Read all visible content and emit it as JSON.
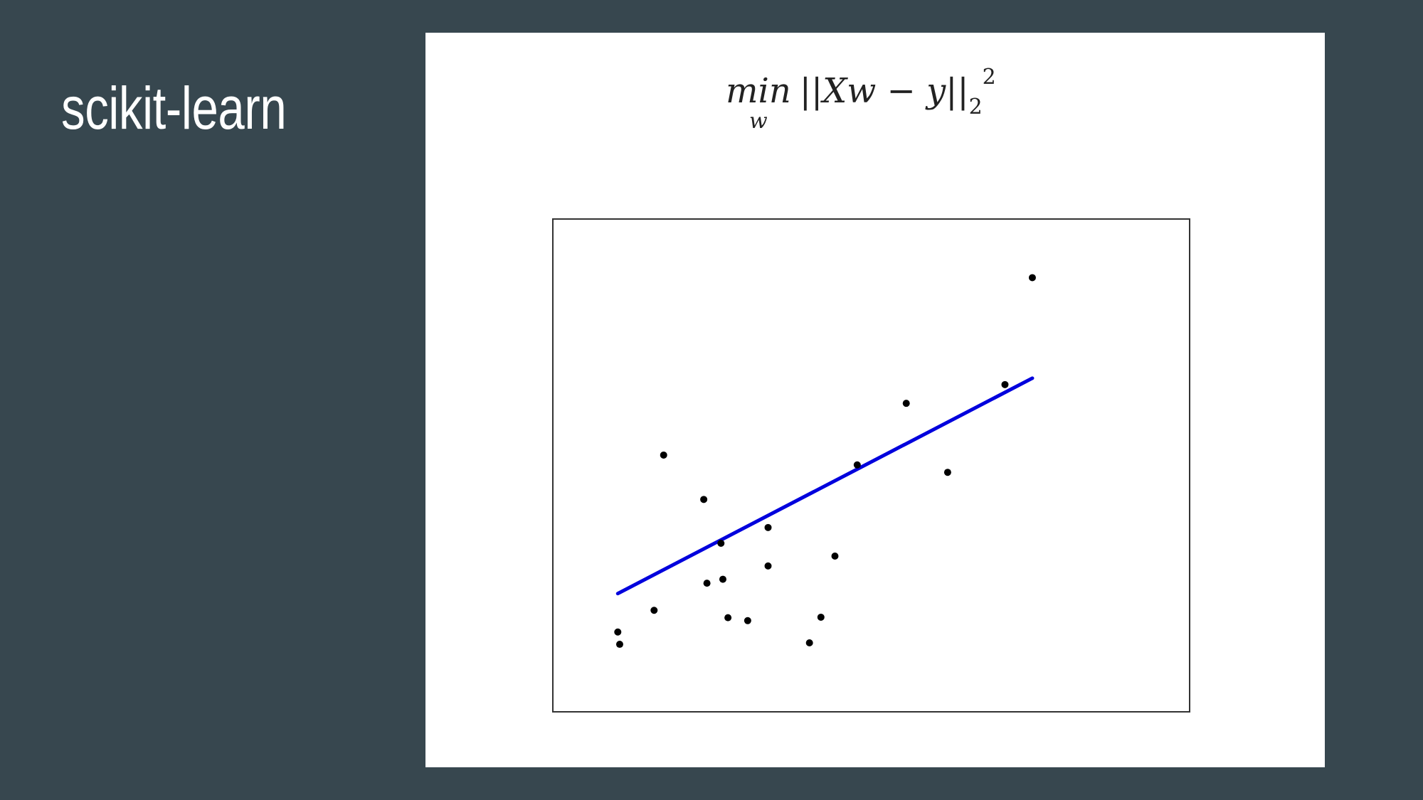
{
  "slide": {
    "title": "scikit-learn"
  },
  "formula": {
    "operator": "min",
    "operator_subscript": "w",
    "body": "||Xw − y||",
    "norm_subscript": "2",
    "superscript": "2"
  },
  "chart_data": {
    "type": "scatter",
    "title": "",
    "xlabel": "",
    "ylabel": "",
    "xlim": [
      0,
      100
    ],
    "ylim": [
      0,
      100
    ],
    "grid": false,
    "legend": "none",
    "ticks": "none",
    "colors": {
      "points": "#000000",
      "line": "#0000dd",
      "axes": "#333333"
    },
    "points": [
      {
        "x": 10.5,
        "y": 13.7
      },
      {
        "x": 10.2,
        "y": 16.2
      },
      {
        "x": 15.9,
        "y": 20.6
      },
      {
        "x": 17.4,
        "y": 52.1
      },
      {
        "x": 23.7,
        "y": 43.1
      },
      {
        "x": 24.2,
        "y": 26.1
      },
      {
        "x": 26.4,
        "y": 34.2
      },
      {
        "x": 26.7,
        "y": 26.9
      },
      {
        "x": 27.5,
        "y": 19.1
      },
      {
        "x": 30.6,
        "y": 18.5
      },
      {
        "x": 33.8,
        "y": 37.4
      },
      {
        "x": 33.8,
        "y": 29.6
      },
      {
        "x": 40.3,
        "y": 14.0
      },
      {
        "x": 42.1,
        "y": 19.2
      },
      {
        "x": 44.3,
        "y": 31.6
      },
      {
        "x": 47.8,
        "y": 50.1
      },
      {
        "x": 55.5,
        "y": 62.6
      },
      {
        "x": 62.0,
        "y": 48.6
      },
      {
        "x": 71.0,
        "y": 66.4
      },
      {
        "x": 75.3,
        "y": 88.1
      }
    ],
    "series": [
      {
        "type": "line",
        "x": [
          10.2,
          75.3
        ],
        "y": [
          24.0,
          67.7
        ]
      }
    ]
  }
}
